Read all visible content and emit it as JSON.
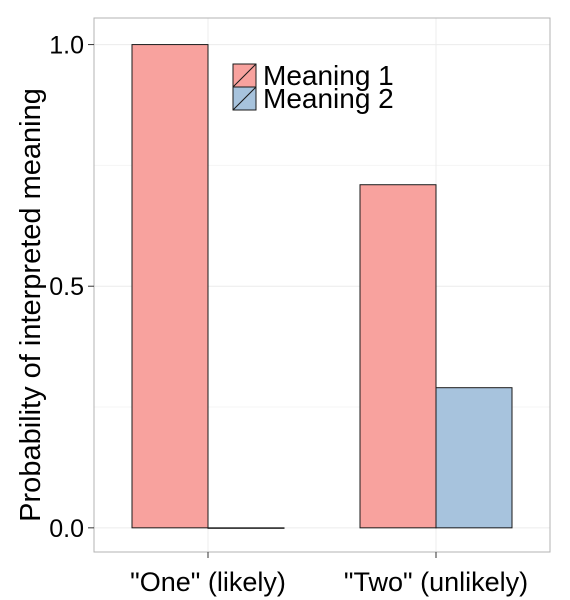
{
  "chart_data": {
    "type": "bar",
    "categories": [
      "\"One\" (likely)",
      "\"Two\" (unlikely)"
    ],
    "series": [
      {
        "name": "Meaning 1",
        "values": [
          1.0,
          0.71
        ]
      },
      {
        "name": "Meaning 2",
        "values": [
          0.0,
          0.29
        ]
      }
    ],
    "title": "",
    "xlabel": "",
    "ylabel": "Probability of interpreted meaning",
    "ylim": [
      -0.05,
      1.055
    ],
    "yticks": [
      0.0,
      0.5,
      1.0
    ],
    "ytick_labels": [
      "0.0",
      "0.5",
      "1.0"
    ],
    "grid": true,
    "legend_position": "top-center",
    "colors": {
      "Meaning 1": "#f8a29e",
      "Meaning 2": "#a7c3dd",
      "outline": "#1a1a1a",
      "grid": "#ececec",
      "panel_border": "#b3b3b3"
    }
  }
}
